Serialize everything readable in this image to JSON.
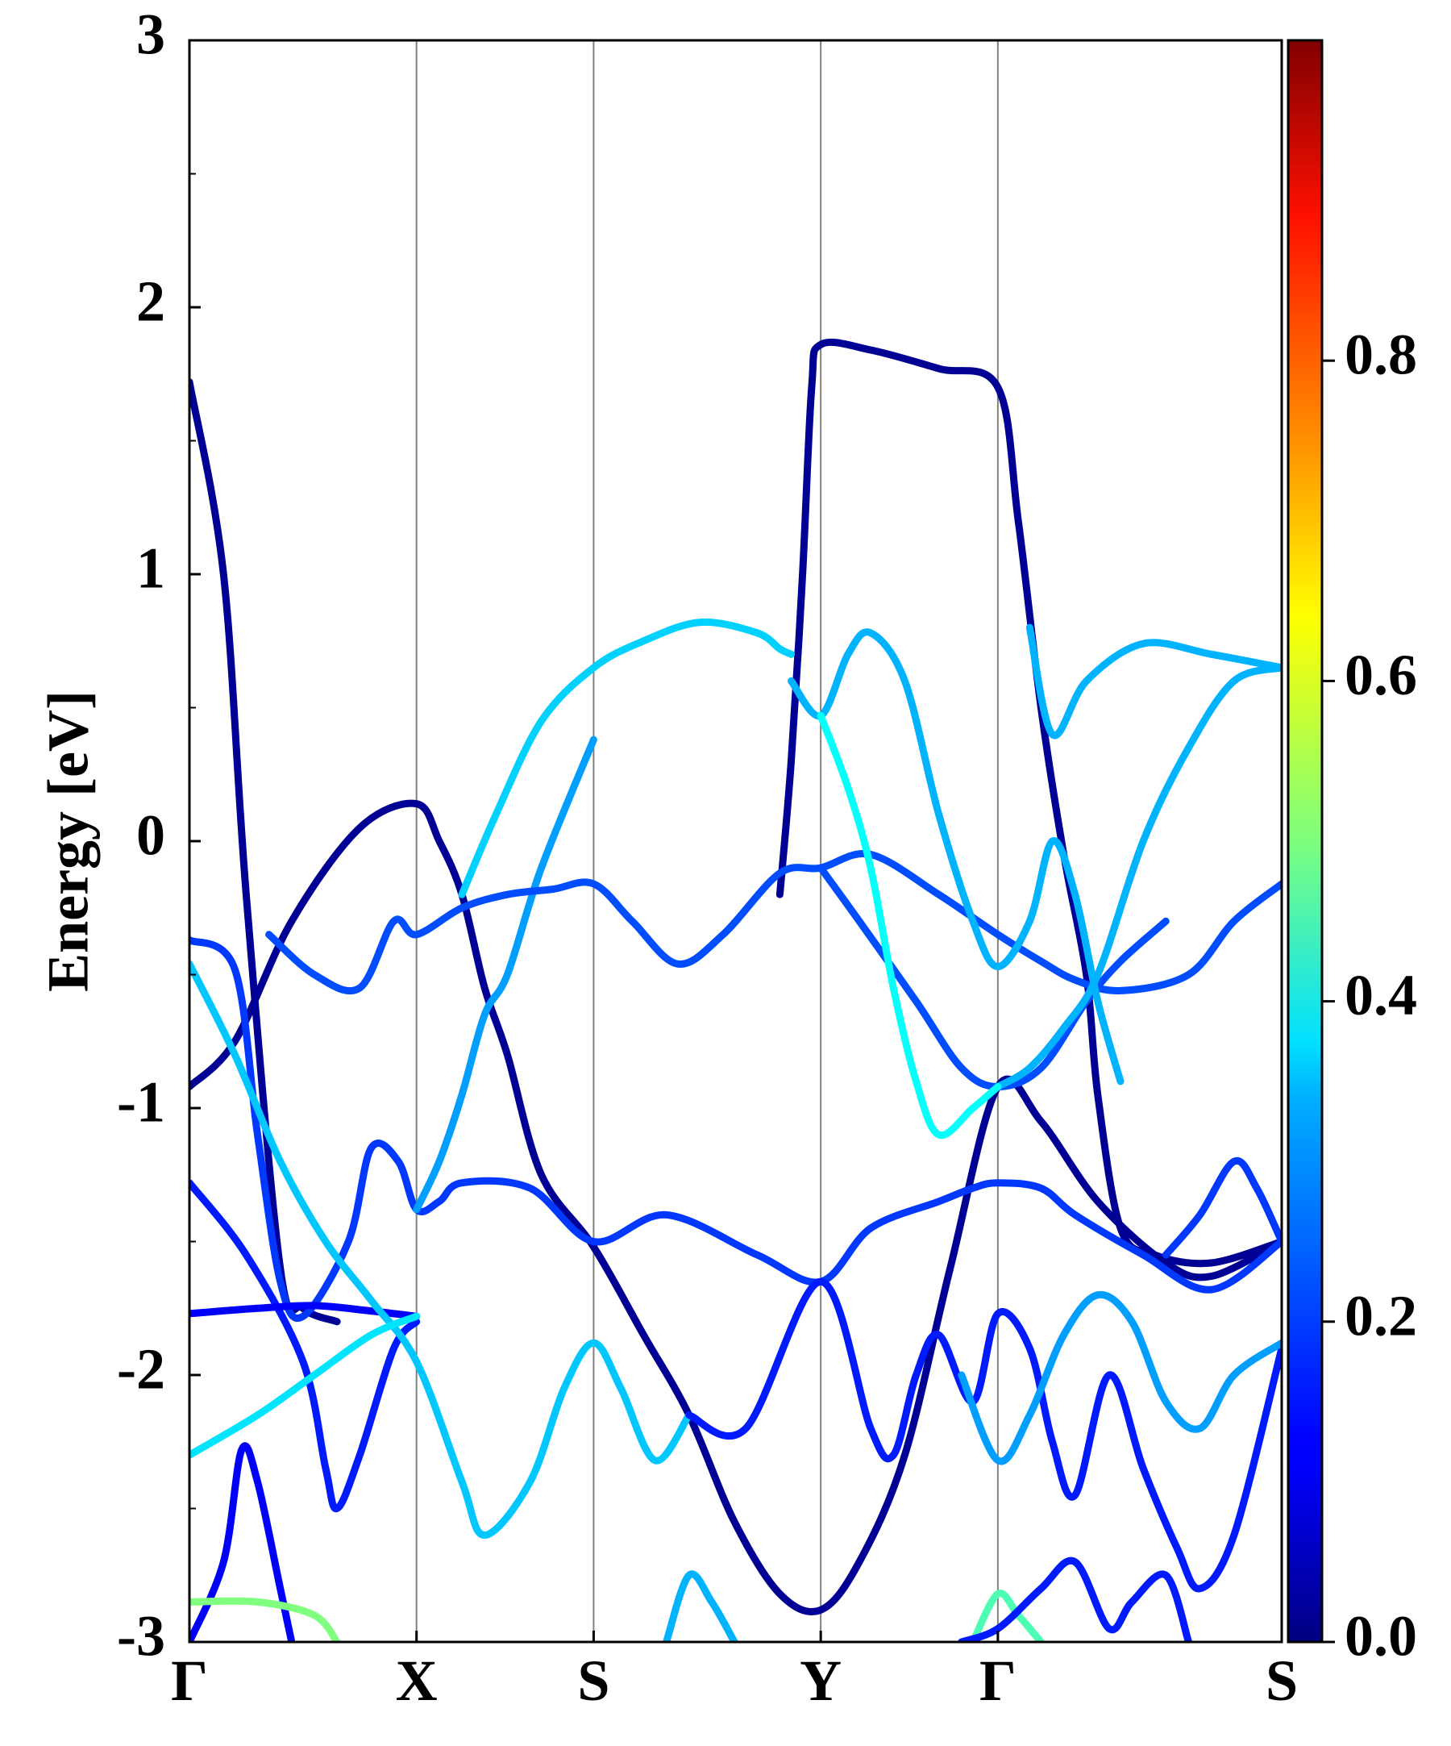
{
  "chart_data": {
    "type": "line",
    "title": "",
    "ylabel": "Energy [eV]",
    "xlabel": "",
    "ylim": [
      -3,
      3
    ],
    "yticks": [
      "-3",
      "-2",
      "-1",
      "0",
      "1",
      "2",
      "3"
    ],
    "kpoints": [
      {
        "label": "Γ",
        "x": 0
      },
      {
        "label": "X",
        "x": 1
      },
      {
        "label": "S",
        "x": 1.78
      },
      {
        "label": "Y",
        "x": 2.78
      },
      {
        "label": "Γ",
        "x": 3.56
      },
      {
        "label": "S",
        "x": 4.81
      }
    ],
    "colorbar": {
      "colormap": "jet",
      "range": [
        0,
        1
      ],
      "ticks": [
        "0.0",
        "0.2",
        "0.4",
        "0.6",
        "0.8"
      ]
    },
    "bands": [
      {
        "weight": 0.02,
        "points": [
          [
            0,
            1.72
          ],
          [
            0.15,
            1.0
          ],
          [
            0.25,
            -0.2
          ],
          [
            0.4,
            -1.6
          ],
          [
            0.5,
            -1.75
          ],
          [
            0.65,
            -1.8
          ]
        ]
      },
      {
        "weight": 0.02,
        "points": [
          [
            0,
            -0.92
          ],
          [
            0.2,
            -0.75
          ],
          [
            0.45,
            -0.3
          ],
          [
            0.75,
            0.05
          ],
          [
            1,
            0.14
          ],
          [
            1.1,
            0.0
          ],
          [
            1.2,
            -0.2
          ],
          [
            1.3,
            -0.55
          ],
          [
            1.4,
            -0.8
          ],
          [
            1.55,
            -1.25
          ],
          [
            1.78,
            -1.52
          ],
          [
            2.0,
            -1.85
          ],
          [
            2.2,
            -2.15
          ],
          [
            2.4,
            -2.55
          ],
          [
            2.6,
            -2.82
          ],
          [
            2.78,
            -2.88
          ],
          [
            2.95,
            -2.7
          ],
          [
            3.15,
            -2.3
          ],
          [
            3.35,
            -1.6
          ],
          [
            3.56,
            -0.92
          ],
          [
            3.75,
            -1.05
          ],
          [
            4.0,
            -1.35
          ],
          [
            4.3,
            -1.58
          ],
          [
            4.5,
            -1.63
          ],
          [
            4.81,
            -1.5
          ]
        ]
      },
      {
        "weight": 0.02,
        "points": [
          [
            2.6,
            -0.2
          ],
          [
            2.65,
            0.3
          ],
          [
            2.7,
            1.0
          ],
          [
            2.74,
            1.7
          ],
          [
            2.78,
            1.86
          ],
          [
            3.0,
            1.84
          ],
          [
            3.3,
            1.77
          ],
          [
            3.56,
            1.7
          ],
          [
            3.65,
            1.2
          ],
          [
            3.75,
            0.5
          ],
          [
            3.85,
            -0.05
          ],
          [
            3.95,
            -0.5
          ],
          [
            4.0,
            -0.95
          ],
          [
            4.1,
            -1.45
          ],
          [
            4.25,
            -1.55
          ],
          [
            4.5,
            -1.58
          ],
          [
            4.81,
            -1.5
          ]
        ]
      },
      {
        "weight": 0.18,
        "points": [
          [
            0,
            -0.37
          ],
          [
            0.2,
            -0.48
          ],
          [
            0.3,
            -1.1
          ],
          [
            0.4,
            -1.65
          ],
          [
            0.5,
            -1.78
          ],
          [
            0.7,
            -1.5
          ],
          [
            0.8,
            -1.15
          ],
          [
            0.92,
            -1.2
          ],
          [
            1,
            -1.38
          ],
          [
            1.1,
            -1.35
          ],
          [
            1.2,
            -1.28
          ],
          [
            1.5,
            -1.3
          ],
          [
            1.78,
            -1.5
          ],
          [
            2.1,
            -1.4
          ],
          [
            2.5,
            -1.55
          ],
          [
            2.78,
            -1.65
          ],
          [
            3.0,
            -1.45
          ],
          [
            3.3,
            -1.35
          ],
          [
            3.45,
            -1.3
          ],
          [
            3.56,
            -1.28
          ],
          [
            3.75,
            -1.3
          ],
          [
            3.9,
            -1.4
          ],
          [
            4.2,
            -1.55
          ],
          [
            4.5,
            -1.68
          ],
          [
            4.81,
            -1.5
          ]
        ]
      },
      {
        "weight": 0.15,
        "points": [
          [
            0,
            -1.28
          ],
          [
            0.25,
            -1.55
          ],
          [
            0.5,
            -1.95
          ],
          [
            0.6,
            -2.35
          ],
          [
            0.65,
            -2.5
          ],
          [
            0.75,
            -2.3
          ],
          [
            0.9,
            -1.9
          ],
          [
            1,
            -1.8
          ]
        ]
      },
      {
        "weight": 0.12,
        "points": [
          [
            0,
            -1.77
          ],
          [
            0.3,
            -1.75
          ],
          [
            0.55,
            -1.74
          ],
          [
            0.8,
            -1.76
          ],
          [
            1,
            -1.78
          ]
        ]
      },
      {
        "weight": 0.12,
        "points": [
          [
            0,
            -3.0
          ],
          [
            0.15,
            -2.7
          ],
          [
            0.23,
            -2.28
          ],
          [
            0.3,
            -2.4
          ],
          [
            0.4,
            -2.8
          ],
          [
            0.45,
            -3.0
          ]
        ]
      },
      {
        "weight": 0.32,
        "points": [
          [
            0,
            -0.46
          ],
          [
            0.2,
            -0.8
          ],
          [
            0.4,
            -1.2
          ],
          [
            0.6,
            -1.5
          ],
          [
            0.8,
            -1.72
          ],
          [
            1,
            -1.95
          ],
          [
            1.2,
            -2.4
          ],
          [
            1.3,
            -2.6
          ],
          [
            1.5,
            -2.4
          ],
          [
            1.65,
            -2.05
          ],
          [
            1.78,
            -1.88
          ],
          [
            1.9,
            -2.05
          ],
          [
            2.05,
            -2.32
          ],
          [
            2.2,
            -2.15
          ]
        ]
      },
      {
        "weight": 0.35,
        "points": [
          [
            0,
            -2.3
          ],
          [
            0.3,
            -2.15
          ],
          [
            0.55,
            -2.0
          ],
          [
            0.8,
            -1.85
          ],
          [
            1,
            -1.78
          ]
        ]
      },
      {
        "weight": 0.28,
        "points": [
          [
            1,
            -1.38
          ],
          [
            1.1,
            -1.2
          ],
          [
            1.2,
            -0.95
          ],
          [
            1.3,
            -0.65
          ],
          [
            1.4,
            -0.5
          ],
          [
            1.55,
            -0.1
          ],
          [
            1.78,
            0.38
          ]
        ]
      },
      {
        "weight": 0.33,
        "points": [
          [
            1.2,
            -0.2
          ],
          [
            1.35,
            0.1
          ],
          [
            1.55,
            0.45
          ],
          [
            1.78,
            0.65
          ],
          [
            2.0,
            0.75
          ],
          [
            2.25,
            0.82
          ],
          [
            2.5,
            0.78
          ],
          [
            2.6,
            0.72
          ],
          [
            2.65,
            0.7
          ]
        ]
      },
      {
        "weight": 0.2,
        "points": [
          [
            0.35,
            -0.35
          ],
          [
            0.55,
            -0.5
          ],
          [
            0.75,
            -0.55
          ],
          [
            0.9,
            -0.3
          ],
          [
            1,
            -0.35
          ],
          [
            1.2,
            -0.25
          ],
          [
            1.4,
            -0.2
          ],
          [
            1.6,
            -0.18
          ],
          [
            1.78,
            -0.16
          ],
          [
            1.95,
            -0.3
          ],
          [
            2.15,
            -0.46
          ],
          [
            2.35,
            -0.35
          ],
          [
            2.6,
            -0.12
          ],
          [
            2.78,
            -0.1
          ],
          [
            3.0,
            -0.05
          ],
          [
            3.3,
            -0.2
          ],
          [
            3.56,
            -0.35
          ],
          [
            3.75,
            -0.45
          ],
          [
            3.9,
            -0.52
          ],
          [
            4.1,
            -0.56
          ],
          [
            4.4,
            -0.5
          ],
          [
            4.6,
            -0.3
          ],
          [
            4.81,
            -0.16
          ]
        ]
      },
      {
        "weight": 0.2,
        "points": [
          [
            2.78,
            -0.1
          ],
          [
            2.95,
            -0.3
          ],
          [
            3.2,
            -0.6
          ],
          [
            3.4,
            -0.85
          ],
          [
            3.56,
            -0.92
          ],
          [
            3.75,
            -0.85
          ],
          [
            3.95,
            -0.6
          ],
          [
            4.1,
            -0.45
          ],
          [
            4.3,
            -0.3
          ]
        ]
      },
      {
        "weight": 0.3,
        "points": [
          [
            2.65,
            0.6
          ],
          [
            2.78,
            0.47
          ],
          [
            2.9,
            0.7
          ],
          [
            3.0,
            0.78
          ],
          [
            3.15,
            0.6
          ],
          [
            3.3,
            0.1
          ],
          [
            3.45,
            -0.3
          ],
          [
            3.56,
            -0.47
          ],
          [
            3.7,
            -0.3
          ],
          [
            3.8,
            0.0
          ],
          [
            3.9,
            -0.2
          ],
          [
            4.0,
            -0.6
          ],
          [
            4.1,
            -0.9
          ]
        ]
      },
      {
        "weight": 0.3,
        "points": [
          [
            3.56,
            -0.92
          ],
          [
            3.7,
            -0.85
          ],
          [
            3.85,
            -0.7
          ],
          [
            4.0,
            -0.5
          ],
          [
            4.2,
            0.0
          ],
          [
            4.4,
            0.35
          ],
          [
            4.6,
            0.6
          ],
          [
            4.81,
            0.65
          ]
        ]
      },
      {
        "weight": 0.3,
        "points": [
          [
            3.7,
            0.8
          ],
          [
            3.8,
            0.4
          ],
          [
            3.95,
            0.6
          ],
          [
            4.2,
            0.74
          ],
          [
            4.5,
            0.7
          ],
          [
            4.81,
            0.65
          ]
        ]
      },
      {
        "weight": 0.38,
        "points": [
          [
            2.78,
            0.47
          ],
          [
            2.9,
            0.2
          ],
          [
            3.0,
            -0.1
          ],
          [
            3.1,
            -0.55
          ],
          [
            3.2,
            -0.9
          ],
          [
            3.3,
            -1.1
          ],
          [
            3.45,
            -1.0
          ],
          [
            3.56,
            -0.92
          ]
        ]
      },
      {
        "weight": 0.15,
        "points": [
          [
            2.2,
            -2.15
          ],
          [
            2.45,
            -2.2
          ],
          [
            2.78,
            -1.65
          ],
          [
            3.0,
            -2.2
          ],
          [
            3.1,
            -2.3
          ],
          [
            3.2,
            -2.0
          ],
          [
            3.3,
            -1.85
          ],
          [
            3.45,
            -2.1
          ],
          [
            3.56,
            -1.77
          ],
          [
            3.7,
            -1.9
          ],
          [
            3.8,
            -2.25
          ],
          [
            3.9,
            -2.45
          ],
          [
            4.05,
            -2.0
          ],
          [
            4.2,
            -2.35
          ],
          [
            4.35,
            -2.65
          ],
          [
            4.45,
            -2.8
          ],
          [
            4.6,
            -2.6
          ],
          [
            4.81,
            -1.9
          ]
        ]
      },
      {
        "weight": 0.28,
        "points": [
          [
            3.4,
            -2.0
          ],
          [
            3.56,
            -2.32
          ],
          [
            3.7,
            -2.15
          ],
          [
            3.85,
            -1.85
          ],
          [
            4.0,
            -1.7
          ],
          [
            4.15,
            -1.8
          ],
          [
            4.3,
            -2.1
          ],
          [
            4.45,
            -2.2
          ],
          [
            4.6,
            -2.0
          ],
          [
            4.81,
            -1.88
          ]
        ]
      },
      {
        "weight": 0.18,
        "points": [
          [
            4.3,
            -1.55
          ],
          [
            4.45,
            -1.4
          ],
          [
            4.6,
            -1.2
          ],
          [
            4.7,
            -1.3
          ],
          [
            4.81,
            -1.5
          ]
        ]
      },
      {
        "weight": 0.5,
        "points": [
          [
            0,
            -2.85
          ],
          [
            0.3,
            -2.85
          ],
          [
            0.55,
            -2.9
          ],
          [
            0.65,
            -3.0
          ]
        ]
      },
      {
        "weight": 0.3,
        "points": [
          [
            2.1,
            -3.0
          ],
          [
            2.2,
            -2.75
          ],
          [
            2.3,
            -2.85
          ],
          [
            2.4,
            -3.0
          ]
        ]
      },
      {
        "weight": 0.45,
        "points": [
          [
            3.45,
            -3.0
          ],
          [
            3.56,
            -2.82
          ],
          [
            3.65,
            -2.9
          ],
          [
            3.75,
            -3.0
          ]
        ]
      },
      {
        "weight": 0.15,
        "points": [
          [
            3.4,
            -3.0
          ],
          [
            3.56,
            -2.95
          ],
          [
            3.75,
            -2.8
          ],
          [
            3.9,
            -2.7
          ],
          [
            4.05,
            -2.95
          ],
          [
            4.15,
            -2.85
          ],
          [
            4.3,
            -2.75
          ],
          [
            4.4,
            -3.0
          ]
        ]
      }
    ]
  }
}
